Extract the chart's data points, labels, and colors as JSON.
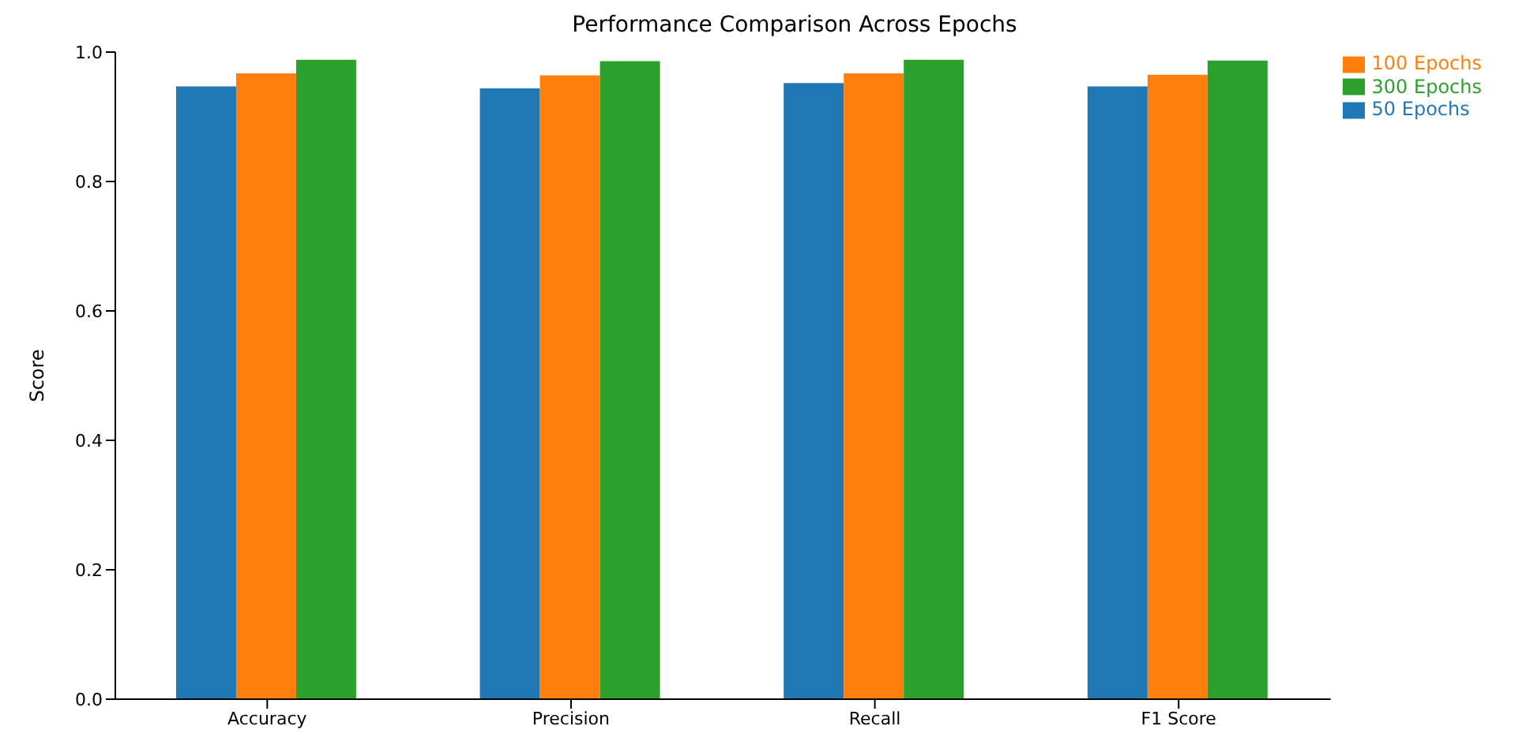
{
  "chart_data": {
    "type": "bar",
    "title": "Performance Comparison Across Epochs",
    "ylabel": "Score",
    "categories": [
      "Accuracy",
      "Precision",
      "Recall",
      "F1 Score"
    ],
    "series": [
      {
        "name": "50 Epochs",
        "color": "#1f77b4",
        "values": [
          0.947,
          0.944,
          0.952,
          0.947
        ]
      },
      {
        "name": "100 Epochs",
        "color": "#ff7f0e",
        "values": [
          0.967,
          0.964,
          0.967,
          0.965
        ]
      },
      {
        "name": "300 Epochs",
        "color": "#2ca02c",
        "values": [
          0.988,
          0.986,
          0.988,
          0.987
        ]
      }
    ],
    "ylim": [
      0,
      1
    ],
    "yticks": [
      {
        "value": 0,
        "label": "0.0"
      },
      {
        "value": 0.2,
        "label": "0.2"
      },
      {
        "value": 0.4,
        "label": "0.4"
      },
      {
        "value": 0.6,
        "label": "0.6"
      },
      {
        "value": 0.8,
        "label": "0.8"
      },
      {
        "value": 1,
        "label": "1.0"
      }
    ],
    "grid": false,
    "legend": "top right"
  }
}
